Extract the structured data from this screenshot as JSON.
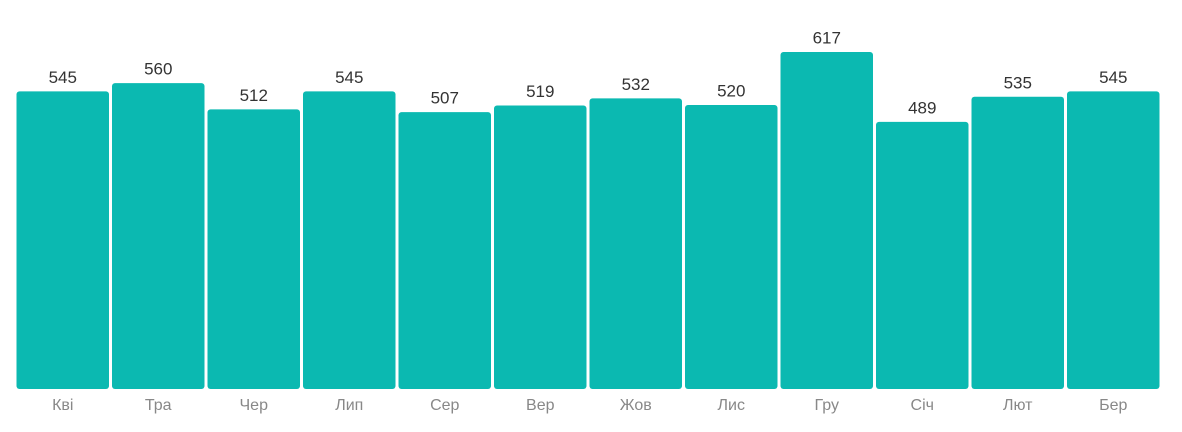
{
  "chart_data": {
    "type": "bar",
    "categories": [
      "Кві",
      "Тра",
      "Чер",
      "Лип",
      "Сер",
      "Вер",
      "Жов",
      "Лис",
      "Гру",
      "Січ",
      "Лют",
      "Бер"
    ],
    "values": [
      545,
      560,
      512,
      545,
      507,
      519,
      532,
      520,
      617,
      489,
      535,
      545
    ],
    "color": "#0bb9b1"
  }
}
